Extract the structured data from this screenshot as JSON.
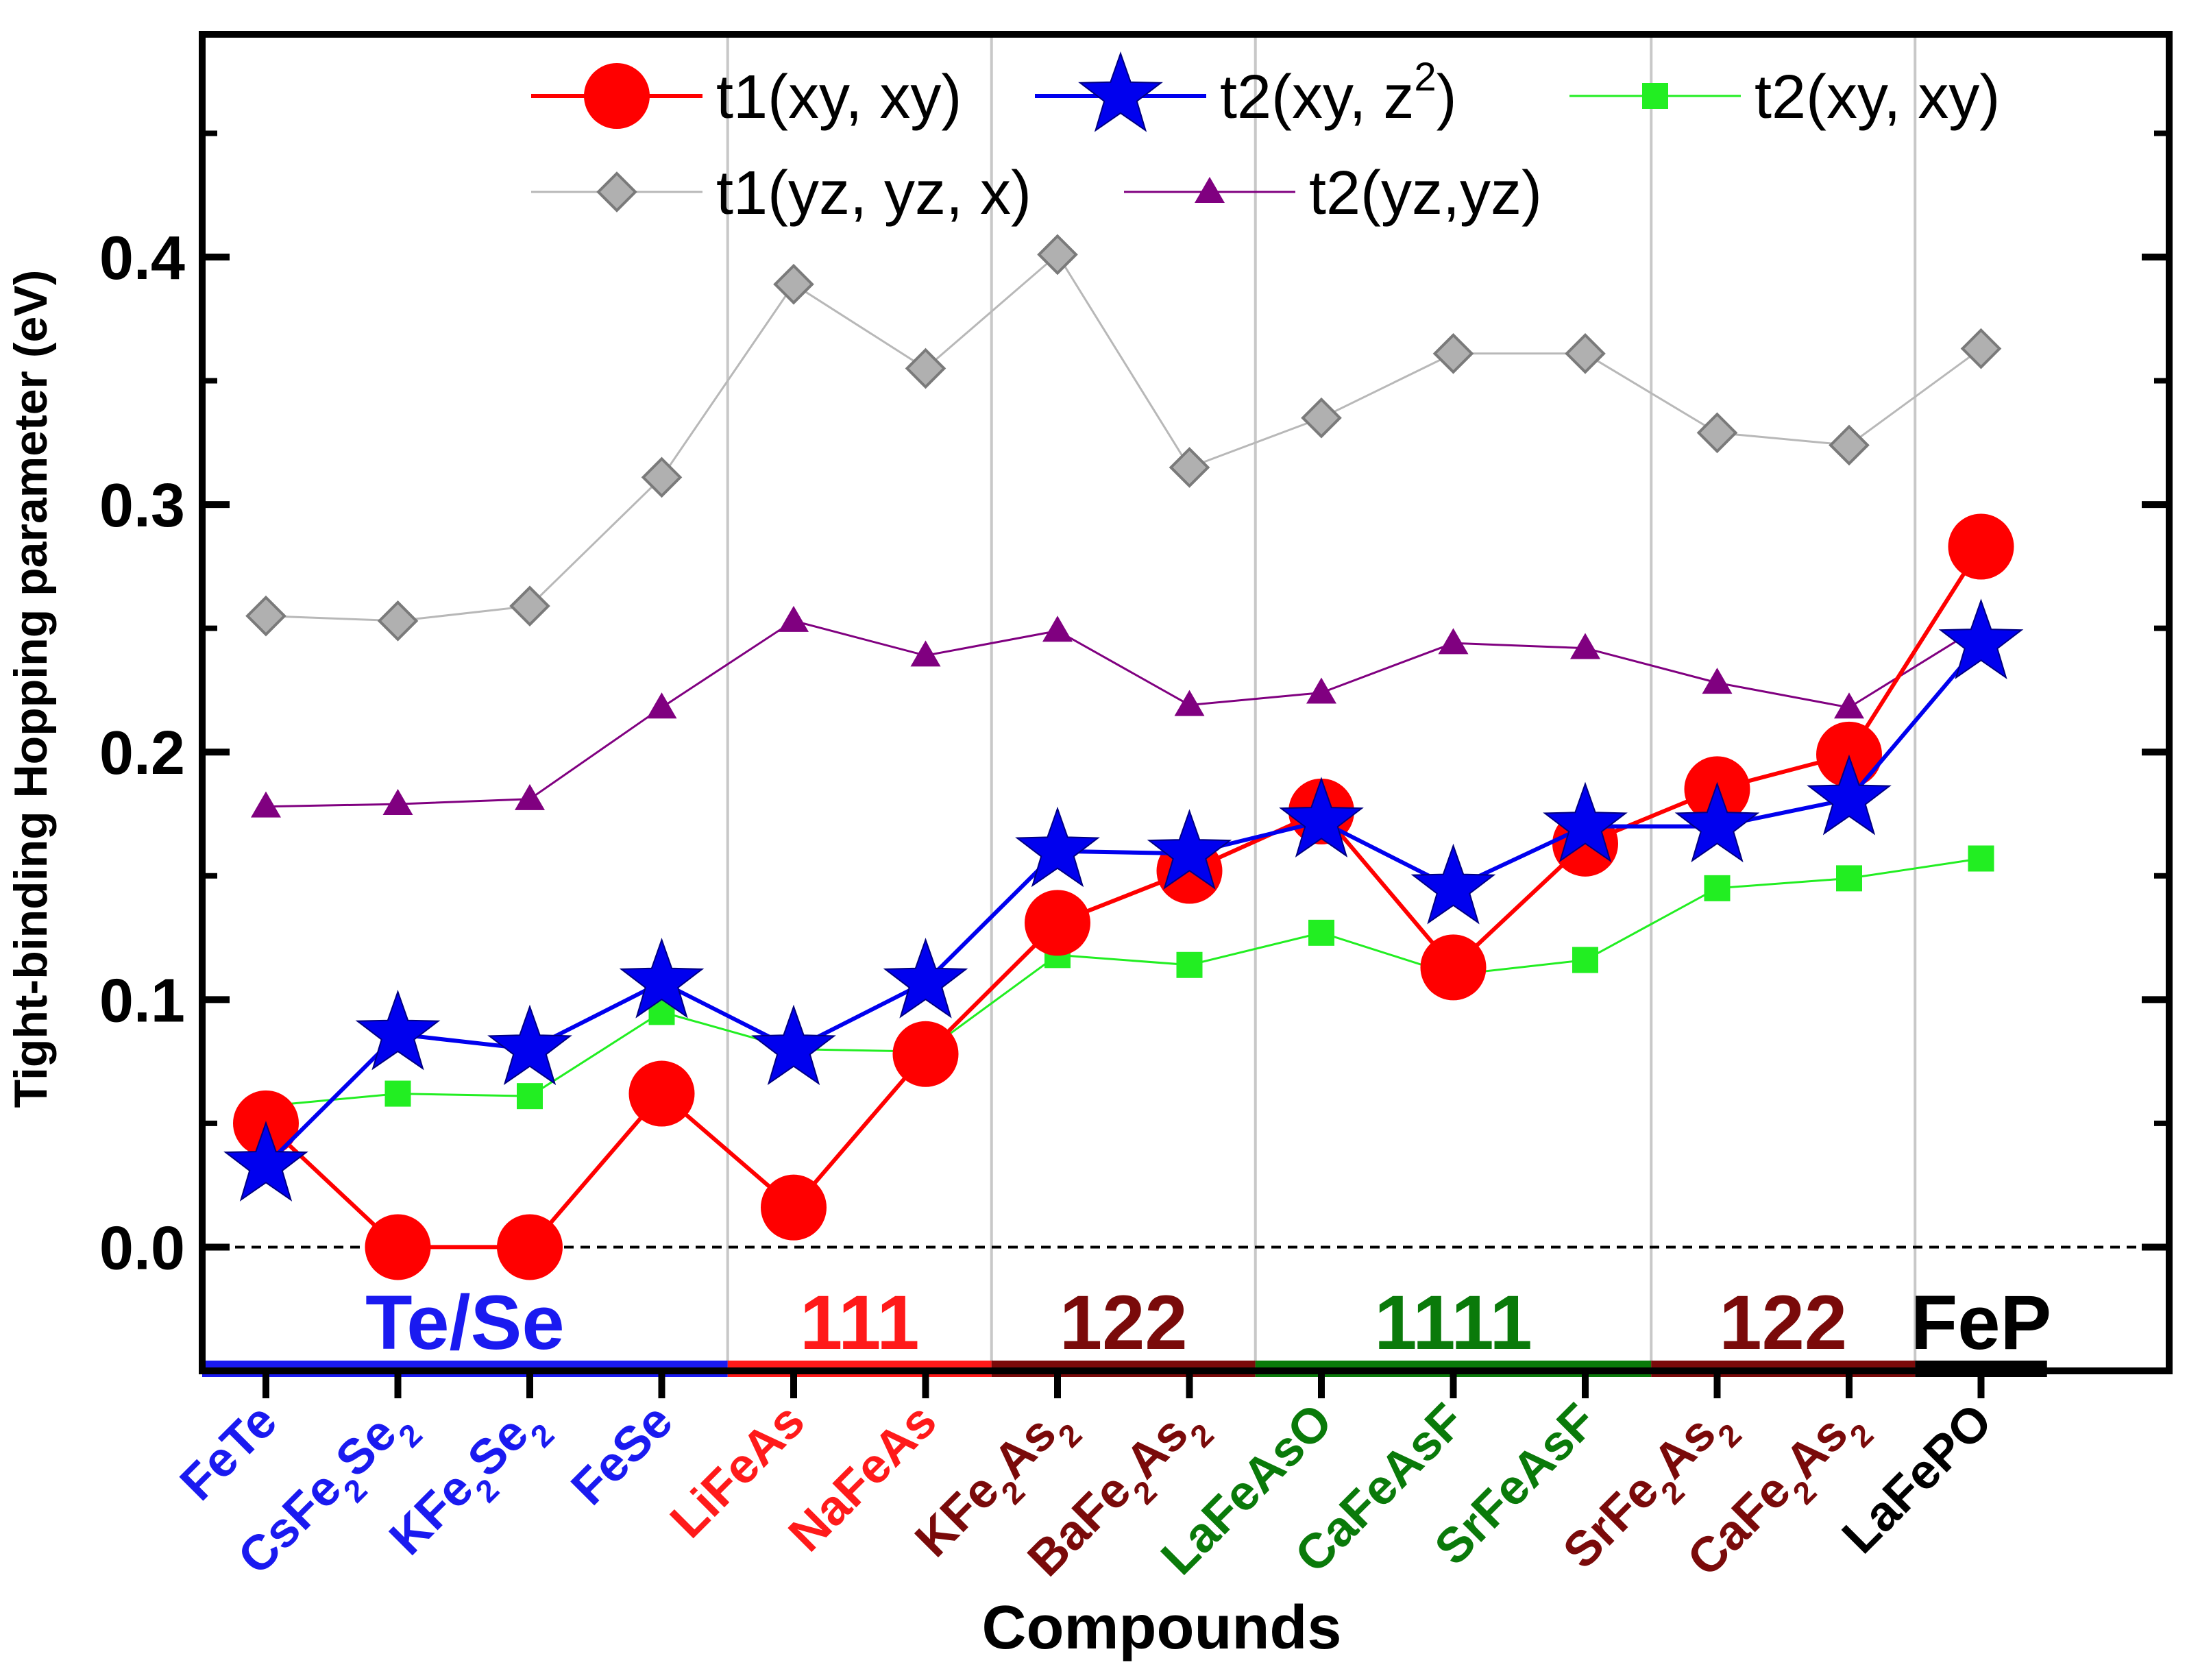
{
  "chart_data": {
    "type": "line",
    "xlabel": "Compounds",
    "ylabel": "Tight-binding Hopping parameter (eV)",
    "ylim": [
      -0.05,
      0.49
    ],
    "yticks": [
      0.0,
      0.1,
      0.2,
      0.3,
      0.4
    ],
    "ytick_labels": [
      "0.0",
      "0.1",
      "0.2",
      "0.3",
      "0.4"
    ],
    "categories": [
      {
        "name": "FeTe",
        "parts": [
          {
            "t": "FeTe",
            "s": false
          }
        ],
        "color": "#1a1af0"
      },
      {
        "name": "CsFe2Se2",
        "parts": [
          {
            "t": "CsFe",
            "s": false
          },
          {
            "t": "2",
            "s": true
          },
          {
            "t": "Se",
            "s": false
          },
          {
            "t": "2",
            "s": true
          }
        ],
        "color": "#1a1af0"
      },
      {
        "name": "KFe2Se2",
        "parts": [
          {
            "t": "KFe",
            "s": false
          },
          {
            "t": "2",
            "s": true
          },
          {
            "t": "Se",
            "s": false
          },
          {
            "t": "2",
            "s": true
          }
        ],
        "color": "#1a1af0"
      },
      {
        "name": "FeSe",
        "parts": [
          {
            "t": "FeSe",
            "s": false
          }
        ],
        "color": "#1a1af0"
      },
      {
        "name": "LiFeAs",
        "parts": [
          {
            "t": "LiFeAs",
            "s": false
          }
        ],
        "color": "#ff1a1a"
      },
      {
        "name": "NaFeAs",
        "parts": [
          {
            "t": "NaFeAs",
            "s": false
          }
        ],
        "color": "#ff1a1a"
      },
      {
        "name": "KFe2As2",
        "parts": [
          {
            "t": "KFe",
            "s": false
          },
          {
            "t": "2",
            "s": true
          },
          {
            "t": "As",
            "s": false
          },
          {
            "t": "2",
            "s": true
          }
        ],
        "color": "#7a0a0a"
      },
      {
        "name": "BaFe2As2",
        "parts": [
          {
            "t": "BaFe",
            "s": false
          },
          {
            "t": "2",
            "s": true
          },
          {
            "t": "As",
            "s": false
          },
          {
            "t": "2",
            "s": true
          }
        ],
        "color": "#7a0a0a"
      },
      {
        "name": "LaFeAsO",
        "parts": [
          {
            "t": "LaFeAsO",
            "s": false
          }
        ],
        "color": "#0a7a0a"
      },
      {
        "name": "CaFeAsF",
        "parts": [
          {
            "t": "CaFeAsF",
            "s": false
          }
        ],
        "color": "#0a7a0a"
      },
      {
        "name": "SrFeAsF",
        "parts": [
          {
            "t": "SrFeAsF",
            "s": false
          }
        ],
        "color": "#0a7a0a"
      },
      {
        "name": "SrFe2As2",
        "parts": [
          {
            "t": "SrFe",
            "s": false
          },
          {
            "t": "2",
            "s": true
          },
          {
            "t": "As",
            "s": false
          },
          {
            "t": "2",
            "s": true
          }
        ],
        "color": "#7a0a0a"
      },
      {
        "name": "CaFe2As2",
        "parts": [
          {
            "t": "CaFe",
            "s": false
          },
          {
            "t": "2",
            "s": true
          },
          {
            "t": "As",
            "s": false
          },
          {
            "t": "2",
            "s": true
          }
        ],
        "color": "#7a0a0a"
      },
      {
        "name": "LaFePO",
        "parts": [
          {
            "t": "LaFePO",
            "s": false
          }
        ],
        "color": "#000000"
      }
    ],
    "groups": [
      {
        "label": "Te/Se",
        "start": 1,
        "end": 4,
        "color": "#1a1af0"
      },
      {
        "label": "111",
        "start": 5,
        "end": 6,
        "color": "#ff1a1a"
      },
      {
        "label": "122",
        "start": 7,
        "end": 8,
        "color": "#7a0a0a"
      },
      {
        "label": "1111",
        "start": 9,
        "end": 11,
        "color": "#0a7a0a"
      },
      {
        "label": "122",
        "start": 12,
        "end": 13,
        "color": "#7a0a0a"
      },
      {
        "label": "FeP",
        "start": 14,
        "end": 14,
        "color": "#000000"
      }
    ],
    "series": [
      {
        "name": "t1(yz, yz, x)",
        "label_main": "t1(yz, yz, x)",
        "label_sup": "",
        "label_end": "",
        "marker": "diamond",
        "color": "#a0a0a0",
        "line_color": "#b8b8b8",
        "values": [
          0.255,
          0.253,
          0.259,
          0.311,
          0.389,
          0.355,
          0.401,
          0.315,
          0.335,
          0.361,
          0.361,
          0.329,
          0.324,
          0.363
        ]
      },
      {
        "name": "t2(yz,yz)",
        "label_main": "t2(yz,yz)",
        "label_sup": "",
        "label_end": "",
        "marker": "triangle",
        "color": "#800080",
        "line_color": "#800080",
        "values": [
          0.178,
          0.179,
          0.181,
          0.218,
          0.253,
          0.239,
          0.249,
          0.219,
          0.224,
          0.244,
          0.242,
          0.228,
          0.218,
          0.251
        ]
      },
      {
        "name": "t2(xy, xy)",
        "label_main": "t2(xy, xy)",
        "label_sup": "",
        "label_end": "",
        "marker": "square",
        "color": "#22ee22",
        "line_color": "#22ee22",
        "values": [
          0.057,
          0.062,
          0.061,
          0.095,
          0.08,
          0.079,
          0.118,
          0.114,
          0.127,
          0.11,
          0.116,
          0.145,
          0.149,
          0.157
        ]
      },
      {
        "name": "t1(xy, xy)",
        "label_main": "t1(xy, xy)",
        "label_sup": "",
        "label_end": "",
        "marker": "circle",
        "color": "#ff0000",
        "line_color": "#ff0000",
        "values": [
          0.05,
          0.0,
          0.0,
          0.062,
          0.016,
          0.078,
          0.131,
          0.152,
          0.176,
          0.113,
          0.163,
          0.185,
          0.199,
          0.283
        ]
      },
      {
        "name": "t2(xy, z2)",
        "label_main": "t2(xy, z",
        "label_sup": "2",
        "label_end": ")",
        "marker": "star",
        "color": "#0000ee",
        "line_color": "#0000ee",
        "values": [
          0.033,
          0.086,
          0.08,
          0.107,
          0.08,
          0.107,
          0.16,
          0.159,
          0.172,
          0.145,
          0.17,
          0.17,
          0.181,
          0.244
        ]
      }
    ],
    "legend_order": [
      "t1(xy, xy)",
      "t2(xy, z2)",
      "t2(xy, xy)",
      "t1(yz, yz, x)",
      "t2(yz,yz)"
    ],
    "legend_position": "top",
    "zero_line": "dashed"
  }
}
